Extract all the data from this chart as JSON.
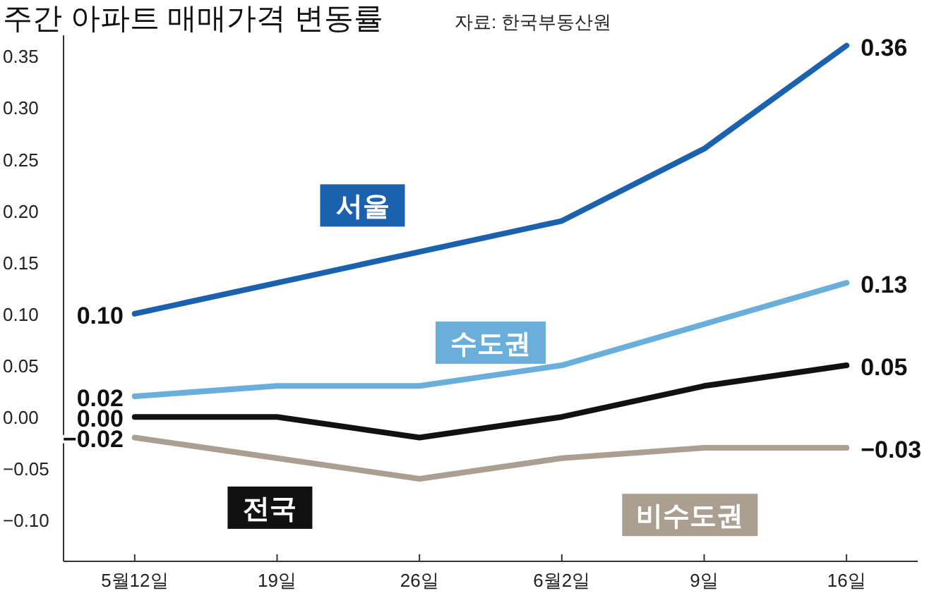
{
  "chart_data": {
    "type": "line",
    "title": "주간 아파트 매매가격 변동률",
    "annotations": [
      "자료: 한국부동산원"
    ],
    "categories": [
      "5월12일",
      "19일",
      "26일",
      "6월2일",
      "9일",
      "16일"
    ],
    "series": [
      {
        "name": "서울",
        "color": "#1a62ad",
        "values": [
          0.1,
          0.13,
          0.16,
          0.19,
          0.26,
          0.36
        ],
        "value_labels": [
          "0.10",
          null,
          null,
          null,
          null,
          "0.36"
        ]
      },
      {
        "name": "수도권",
        "color": "#6aaedc",
        "values": [
          0.02,
          0.03,
          0.03,
          0.05,
          0.09,
          0.13
        ],
        "value_labels": [
          "0.02",
          null,
          null,
          null,
          null,
          "0.13"
        ]
      },
      {
        "name": "전국",
        "color": "#111111",
        "values": [
          0.0,
          0.0,
          -0.02,
          0.0,
          0.03,
          0.05
        ],
        "value_labels": [
          "0.00",
          null,
          null,
          null,
          null,
          "0.05"
        ]
      },
      {
        "name": "비수도권",
        "color": "#aa9f91",
        "values": [
          -0.02,
          -0.04,
          -0.06,
          -0.04,
          -0.03,
          -0.03
        ],
        "value_labels": [
          "−0.02",
          null,
          null,
          null,
          null,
          "−0.03"
        ]
      }
    ],
    "ylim": [
      -0.14,
      0.37
    ],
    "yticks": [
      {
        "value": -0.1,
        "label": "−0.10"
      },
      {
        "value": -0.05,
        "label": "−0.05"
      },
      {
        "value": 0,
        "label": "0.00"
      },
      {
        "value": 0.05,
        "label": "0.05"
      },
      {
        "value": 0.1,
        "label": "0.10"
      },
      {
        "value": 0.15,
        "label": "0.15"
      },
      {
        "value": 0.2,
        "label": "0.20"
      },
      {
        "value": 0.25,
        "label": "0.25"
      },
      {
        "value": 0.3,
        "label": "0.30"
      },
      {
        "value": 0.35,
        "label": "0.35"
      }
    ],
    "grid": false,
    "legend": false,
    "line_style": "solid"
  }
}
